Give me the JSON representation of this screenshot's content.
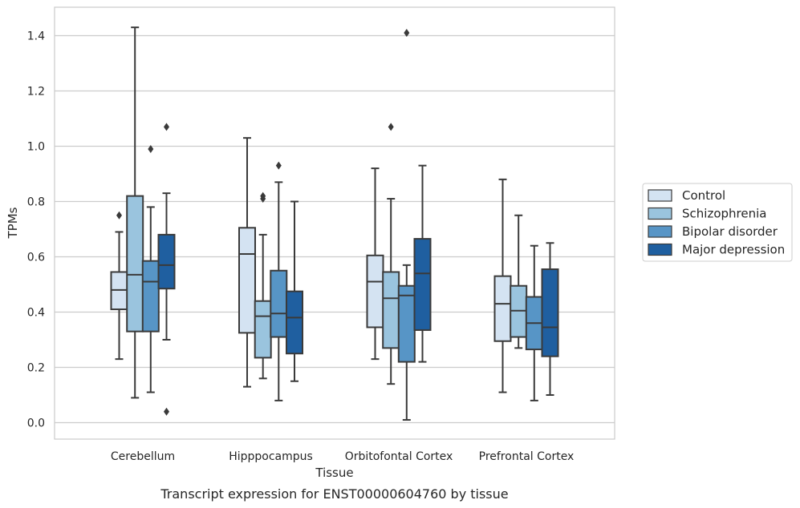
{
  "chart_data": {
    "type": "boxplot",
    "xlabel": "Tissue",
    "ylabel": "TPMs",
    "caption": "Transcript expression for ENST00000604760 by tissue",
    "ylim": [
      -0.06,
      1.5
    ],
    "yticks": [
      "0.0",
      "0.2",
      "0.4",
      "0.6",
      "0.8",
      "1.0",
      "1.2",
      "1.4"
    ],
    "grid": "horizontal",
    "legend_position": "right",
    "categories": [
      "Cerebellum",
      "Hipppocampus",
      "Orbitofontal Cortex",
      "Prefrontal Cortex"
    ],
    "series": [
      {
        "name": "Control",
        "color": "#d4e3f2",
        "boxes": [
          {
            "whisker_low": 0.23,
            "q1": 0.41,
            "median": 0.48,
            "q3": 0.545,
            "whisker_high": 0.69,
            "outliers": [
              0.75
            ]
          },
          {
            "whisker_low": 0.13,
            "q1": 0.325,
            "median": 0.61,
            "q3": 0.705,
            "whisker_high": 1.03,
            "outliers": []
          },
          {
            "whisker_low": 0.23,
            "q1": 0.345,
            "median": 0.51,
            "q3": 0.605,
            "whisker_high": 0.92,
            "outliers": []
          },
          {
            "whisker_low": 0.11,
            "q1": 0.295,
            "median": 0.43,
            "q3": 0.53,
            "whisker_high": 0.88,
            "outliers": []
          }
        ]
      },
      {
        "name": "Schizophrenia",
        "color": "#9ac4de",
        "boxes": [
          {
            "whisker_low": 0.09,
            "q1": 0.33,
            "median": 0.535,
            "q3": 0.82,
            "whisker_high": 1.43,
            "outliers": []
          },
          {
            "whisker_low": 0.16,
            "q1": 0.235,
            "median": 0.385,
            "q3": 0.44,
            "whisker_high": 0.68,
            "outliers": [
              0.81,
              0.82
            ]
          },
          {
            "whisker_low": 0.14,
            "q1": 0.27,
            "median": 0.45,
            "q3": 0.545,
            "whisker_high": 0.81,
            "outliers": [
              1.07
            ]
          },
          {
            "whisker_low": 0.27,
            "q1": 0.31,
            "median": 0.405,
            "q3": 0.495,
            "whisker_high": 0.75,
            "outliers": []
          }
        ]
      },
      {
        "name": "Bipolar disorder",
        "color": "#5795c6",
        "boxes": [
          {
            "whisker_low": 0.11,
            "q1": 0.33,
            "median": 0.51,
            "q3": 0.585,
            "whisker_high": 0.78,
            "outliers": [
              0.99
            ]
          },
          {
            "whisker_low": 0.08,
            "q1": 0.31,
            "median": 0.395,
            "q3": 0.55,
            "whisker_high": 0.87,
            "outliers": [
              0.93
            ]
          },
          {
            "whisker_low": 0.01,
            "q1": 0.22,
            "median": 0.46,
            "q3": 0.495,
            "whisker_high": 0.57,
            "outliers": [
              1.41
            ]
          },
          {
            "whisker_low": 0.08,
            "q1": 0.265,
            "median": 0.36,
            "q3": 0.455,
            "whisker_high": 0.64,
            "outliers": []
          }
        ]
      },
      {
        "name": "Major depression",
        "color": "#1f5fa0",
        "boxes": [
          {
            "whisker_low": 0.3,
            "q1": 0.485,
            "median": 0.57,
            "q3": 0.68,
            "whisker_high": 0.83,
            "outliers": [
              1.07,
              0.04
            ]
          },
          {
            "whisker_low": 0.15,
            "q1": 0.25,
            "median": 0.38,
            "q3": 0.475,
            "whisker_high": 0.8,
            "outliers": []
          },
          {
            "whisker_low": 0.22,
            "q1": 0.335,
            "median": 0.54,
            "q3": 0.665,
            "whisker_high": 0.93,
            "outliers": []
          },
          {
            "whisker_low": 0.1,
            "q1": 0.24,
            "median": 0.345,
            "q3": 0.555,
            "whisker_high": 0.65,
            "outliers": []
          }
        ]
      }
    ]
  }
}
